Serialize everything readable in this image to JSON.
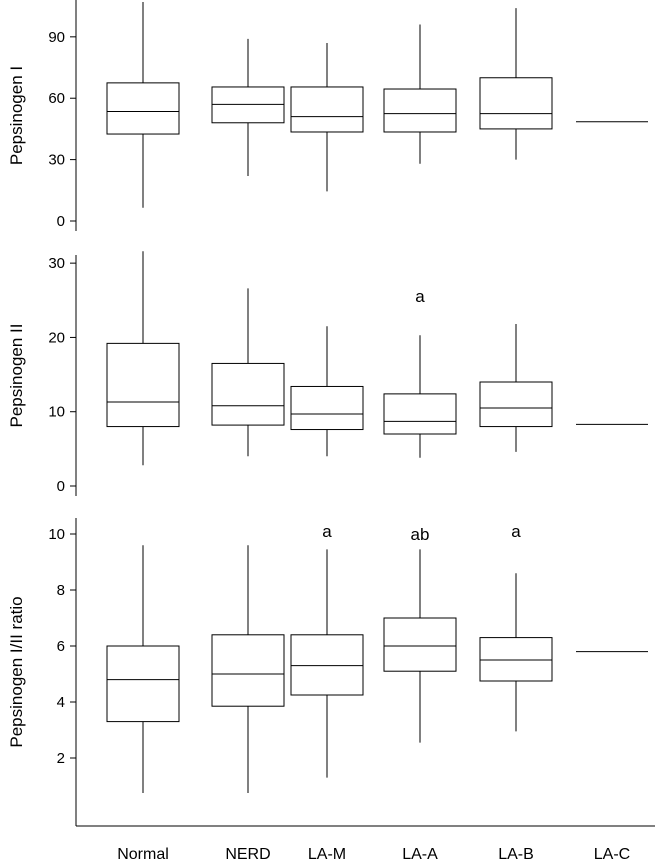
{
  "chart_data": [
    {
      "type": "box",
      "ylabel": "Pepsinogen I",
      "ylim": [
        0,
        108
      ],
      "yticks": [
        0,
        30,
        60,
        90
      ],
      "categories": [
        "Normal",
        "NERD",
        "LA-M",
        "LA-A",
        "LA-B",
        "LA-C"
      ],
      "boxes": [
        {
          "min": 6.5,
          "q1": 42.5,
          "median": 53.5,
          "q3": 67.5,
          "max": 107
        },
        {
          "min": 22,
          "q1": 48,
          "median": 57,
          "q3": 65.5,
          "max": 89
        },
        {
          "min": 14.5,
          "q1": 43.5,
          "median": 51,
          "q3": 65.5,
          "max": 87
        },
        {
          "min": 28,
          "q1": 43.5,
          "median": 52.5,
          "q3": 64.5,
          "max": 96
        },
        {
          "min": 30,
          "q1": 45,
          "median": 52.5,
          "q3": 70,
          "max": 104
        },
        {
          "min": 48.5,
          "q1": 48.5,
          "median": 48.5,
          "q3": 48.5,
          "max": 48.5
        }
      ],
      "annotations": []
    },
    {
      "type": "box",
      "ylabel": "Pepsinogen II",
      "ylim": [
        0,
        31.5
      ],
      "yticks": [
        0,
        10,
        20,
        30
      ],
      "categories": [
        "Normal",
        "NERD",
        "LA-M",
        "LA-A",
        "LA-B",
        "LA-C"
      ],
      "boxes": [
        {
          "min": 2.8,
          "q1": 8,
          "median": 11.3,
          "q3": 19.2,
          "max": 31.6
        },
        {
          "min": 4,
          "q1": 8.2,
          "median": 10.8,
          "q3": 16.5,
          "max": 26.6
        },
        {
          "min": 4,
          "q1": 7.6,
          "median": 9.7,
          "q3": 13.4,
          "max": 21.5
        },
        {
          "min": 3.8,
          "q1": 7,
          "median": 8.7,
          "q3": 12.4,
          "max": 20.3
        },
        {
          "min": 4.6,
          "q1": 8,
          "median": 10.5,
          "q3": 14,
          "max": 21.8
        },
        {
          "min": 8.3,
          "q1": 8.3,
          "median": 8.3,
          "q3": 8.3,
          "max": 8.3
        }
      ],
      "annotations": [
        {
          "category": "LA-A",
          "text": "a",
          "y": 25.6
        }
      ]
    },
    {
      "type": "box",
      "ylabel": "Pepsinogen I/II ratio",
      "ylim": [
        0,
        10.5
      ],
      "yticks": [
        2,
        4,
        6,
        8,
        10
      ],
      "categories": [
        "Normal",
        "NERD",
        "LA-M",
        "LA-A",
        "LA-B",
        "LA-C"
      ],
      "boxes": [
        {
          "min": 0.75,
          "q1": 3.3,
          "median": 4.8,
          "q3": 6.0,
          "max": 9.6
        },
        {
          "min": 0.75,
          "q1": 3.85,
          "median": 5.0,
          "q3": 6.4,
          "max": 9.6
        },
        {
          "min": 1.3,
          "q1": 4.25,
          "median": 5.3,
          "q3": 6.4,
          "max": 9.45
        },
        {
          "min": 2.55,
          "q1": 5.1,
          "median": 6.0,
          "q3": 7.0,
          "max": 9.45
        },
        {
          "min": 2.95,
          "q1": 4.75,
          "median": 5.5,
          "q3": 6.3,
          "max": 8.6
        },
        {
          "min": 5.8,
          "q1": 5.8,
          "median": 5.8,
          "q3": 5.8,
          "max": 5.8
        }
      ],
      "annotations": [
        {
          "category": "LA-M",
          "text": "a",
          "y": 10.1
        },
        {
          "category": "LA-A",
          "text": "ab",
          "y": 10.0
        },
        {
          "category": "LA-B",
          "text": "a",
          "y": 10.1
        }
      ]
    }
  ]
}
